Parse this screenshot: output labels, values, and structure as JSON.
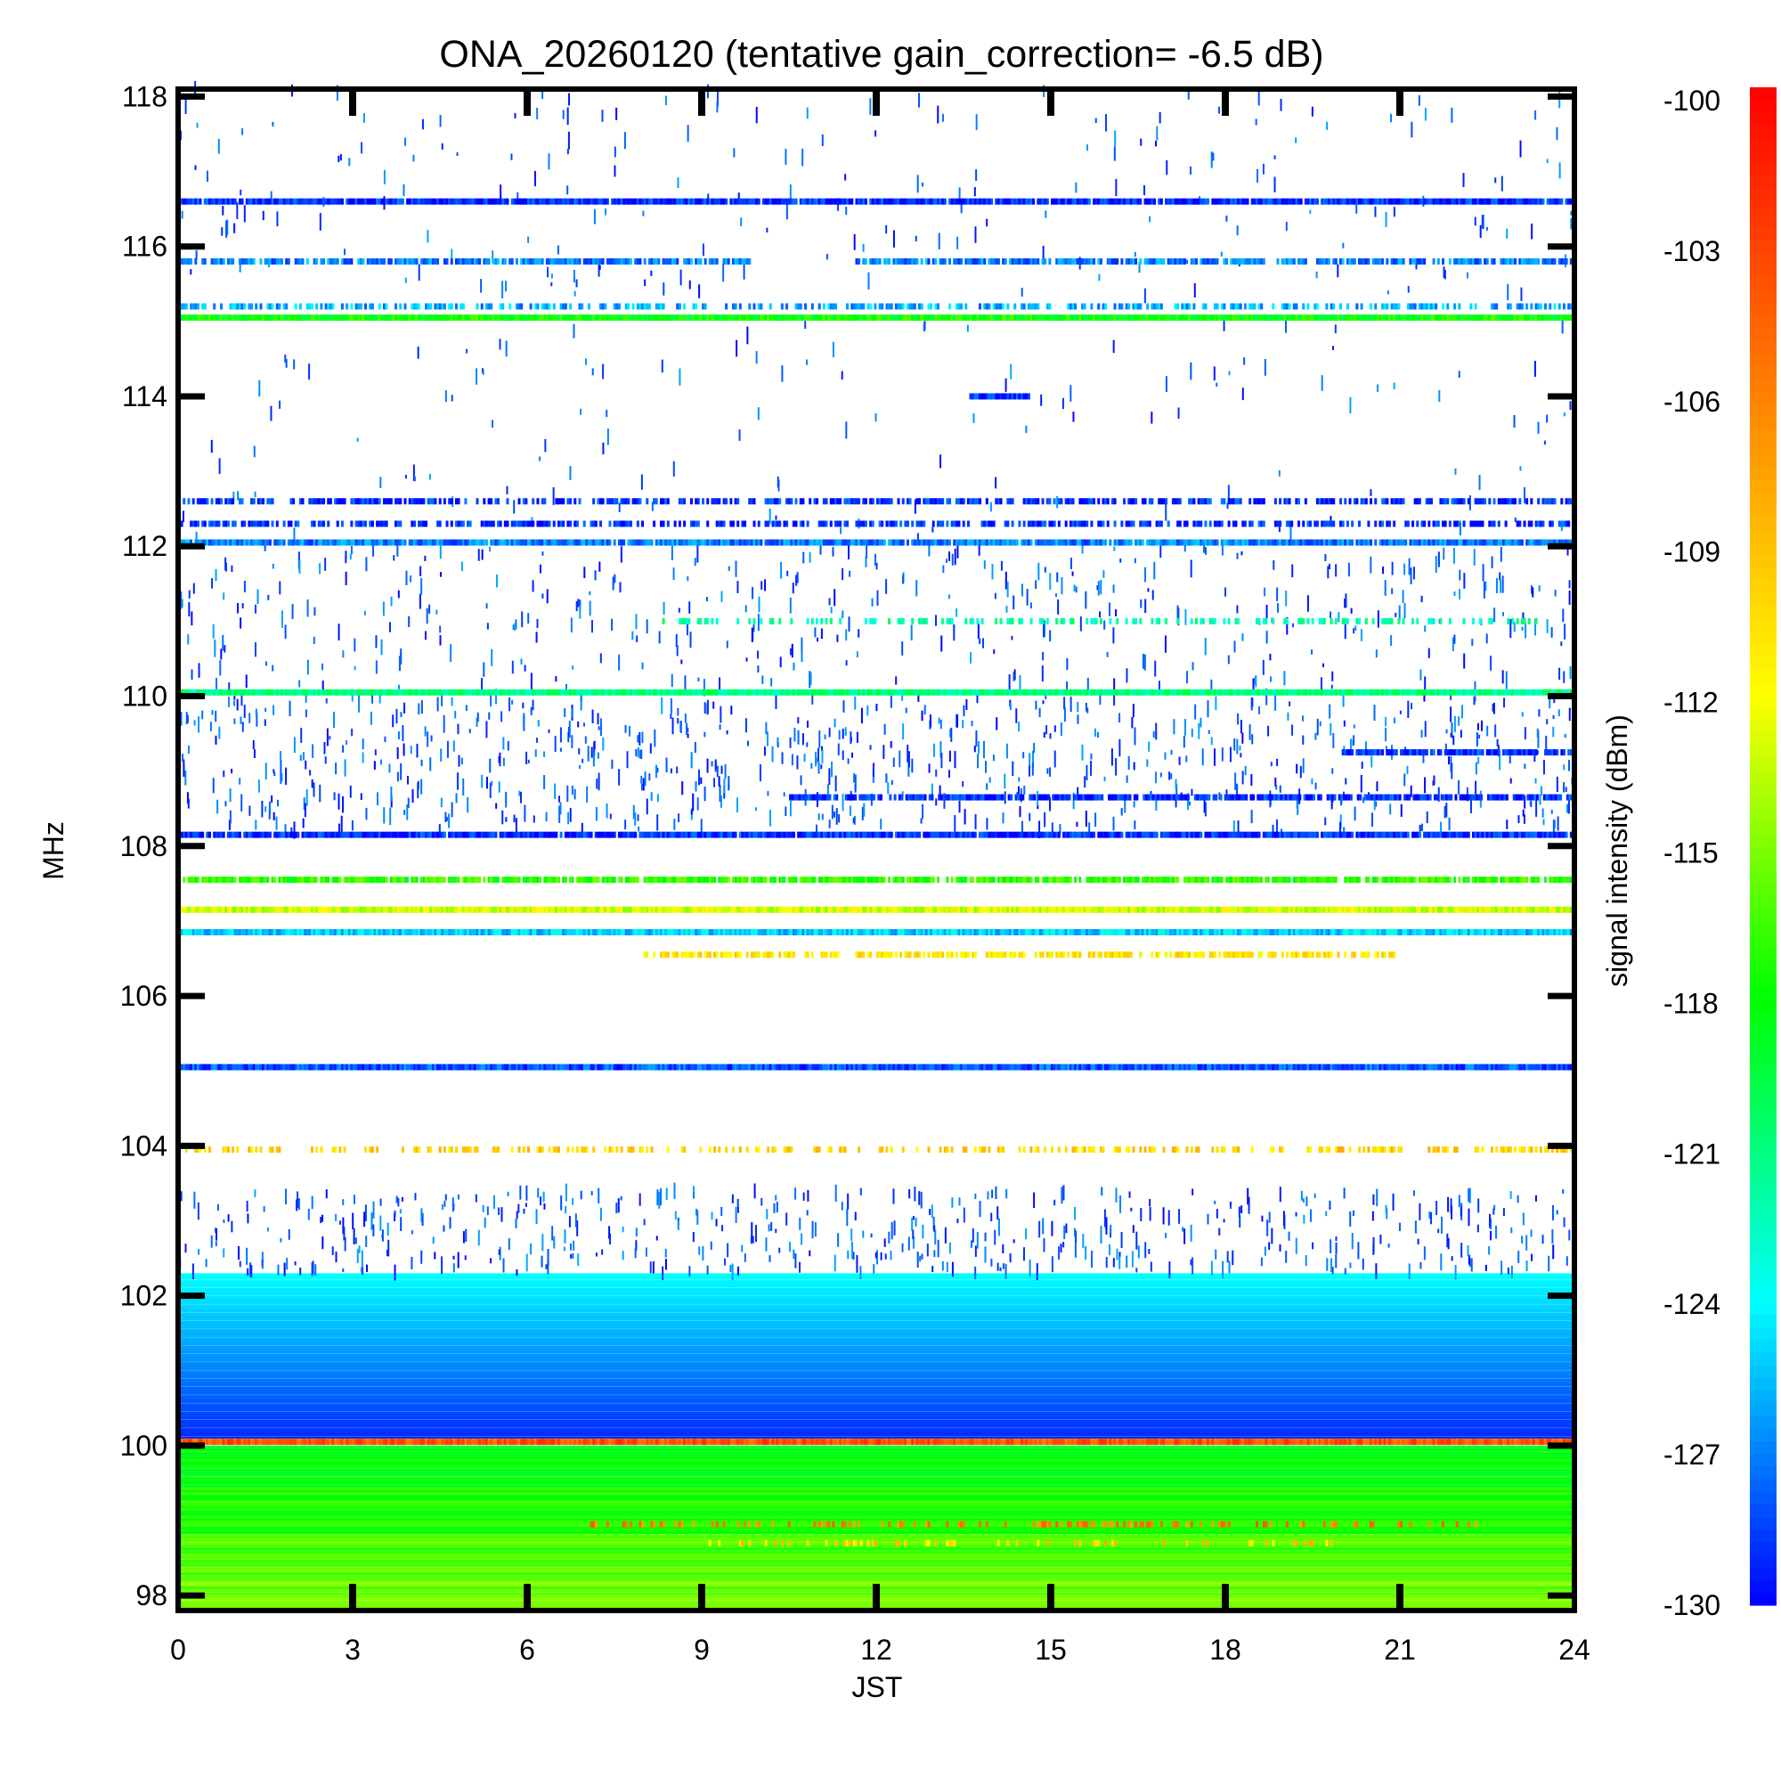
{
  "chart_data": {
    "type": "heatmap",
    "title": "ONA_20260120 (tentative gain_correction= -6.5 dB)",
    "xlabel": "JST",
    "ylabel": "MHz",
    "colorbar_label": "signal intensity (dBm)",
    "xlim": [
      0,
      24
    ],
    "ylim": [
      97.8,
      118.1
    ],
    "x_ticks": [
      "0",
      "3",
      "6",
      "9",
      "12",
      "15",
      "18",
      "21",
      "24"
    ],
    "y_ticks": [
      "98",
      "100",
      "102",
      "104",
      "106",
      "108",
      "110",
      "112",
      "114",
      "116",
      "118"
    ],
    "colorbar_ticks": [
      "-100",
      "-103",
      "-106",
      "-109",
      "-112",
      "-115",
      "-118",
      "-121",
      "-124",
      "-127",
      "-130"
    ],
    "colorbar_range": [
      -130,
      -100
    ],
    "colormap": [
      "#0000ff",
      "#00ffff",
      "#00ff00",
      "#ffff00",
      "#ff8000",
      "#ff0000"
    ],
    "bands": [
      {
        "freq": 116.6,
        "level": -129,
        "coverage": 0.95
      },
      {
        "freq": 115.8,
        "level": -127,
        "coverage": 0.8,
        "gap": [
          9.8,
          11.6
        ]
      },
      {
        "freq": 115.2,
        "level": -126,
        "coverage": 0.55
      },
      {
        "freq": 115.05,
        "level": -118,
        "coverage": 1.0
      },
      {
        "freq": 114.0,
        "level": -129,
        "coverage": 1.0,
        "range": [
          13.6,
          14.6
        ]
      },
      {
        "freq": 112.6,
        "level": -129,
        "coverage": 0.6
      },
      {
        "freq": 112.3,
        "level": -129,
        "coverage": 0.6
      },
      {
        "freq": 112.05,
        "level": -127,
        "coverage": 0.95
      },
      {
        "freq": 111.0,
        "level": -122,
        "coverage": 0.4,
        "range": [
          8.0,
          23.5
        ]
      },
      {
        "freq": 110.05,
        "level": -121,
        "coverage": 1.0
      },
      {
        "freq": 109.25,
        "level": -129,
        "coverage": 0.9,
        "range": [
          20.0,
          24.0
        ]
      },
      {
        "freq": 108.65,
        "level": -129,
        "coverage": 0.85,
        "range": [
          10.5,
          24.0
        ]
      },
      {
        "freq": 108.15,
        "level": -129,
        "coverage": 0.95
      },
      {
        "freq": 107.55,
        "level": -117,
        "coverage": 0.85
      },
      {
        "freq": 107.15,
        "level": -113,
        "coverage": 1.0
      },
      {
        "freq": 106.85,
        "level": -125,
        "coverage": 1.0
      },
      {
        "freq": 106.55,
        "level": -111,
        "coverage": 0.6,
        "range": [
          8.0,
          21.0
        ]
      },
      {
        "freq": 105.05,
        "level": -128,
        "coverage": 1.0
      },
      {
        "freq": 103.95,
        "level": -110,
        "coverage": 0.4
      },
      {
        "freq": 100.05,
        "level": -104,
        "coverage": 1.0
      },
      {
        "freq": 98.95,
        "level": -106,
        "coverage": 0.3,
        "range": [
          7.0,
          22.5
        ]
      },
      {
        "freq": 98.7,
        "level": -110,
        "coverage": 0.25,
        "range": [
          9.0,
          20.0
        ]
      }
    ],
    "noise_floor": [
      {
        "freq_range": [
          100.1,
          102.3
        ],
        "level_range": [
          -129,
          -124
        ]
      },
      {
        "freq_range": [
          97.8,
          100.0
        ],
        "level_range": [
          -120,
          -114
        ]
      }
    ],
    "sparse_activity": [
      {
        "freq_range": [
          108.2,
          110.0
        ],
        "density": 0.9
      },
      {
        "freq_range": [
          110.1,
          112.0
        ],
        "density": 0.5
      },
      {
        "freq_range": [
          112.1,
          115.0
        ],
        "density": 0.15
      },
      {
        "freq_range": [
          115.3,
          118.1
        ],
        "density": 0.25
      },
      {
        "freq_range": [
          102.3,
          103.4
        ],
        "density": 0.6
      }
    ]
  }
}
